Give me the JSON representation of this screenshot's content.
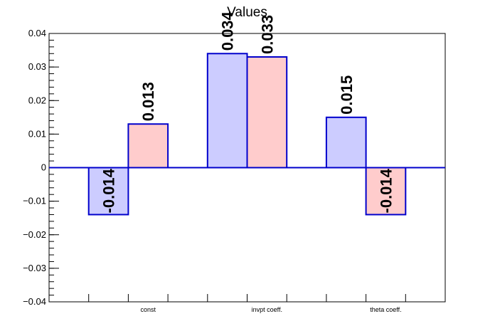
{
  "chart_data": {
    "type": "bar",
    "title": "Values",
    "categories": [
      "const",
      "invpt coeff.",
      "theta coeff."
    ],
    "series": [
      {
        "values": [
          -0.014,
          0.034,
          0.015
        ],
        "labels": [
          "-0.014",
          "0.034",
          "0.015"
        ],
        "color": "#ccccff"
      },
      {
        "values": [
          0.013,
          0.033,
          -0.014
        ],
        "labels": [
          "0.013",
          "0.033",
          "-0.014"
        ],
        "color": "#ffcccc"
      }
    ],
    "bar_edge_color": "#0000cc",
    "ylim": [
      -0.04,
      0.04
    ],
    "yticks": [
      -0.04,
      -0.03,
      -0.02,
      -0.01,
      0,
      0.01,
      0.02,
      0.03,
      0.04
    ],
    "ytick_labels": [
      "−0.04",
      "−0.03",
      "−0.02",
      "−0.01",
      "0",
      "0.01",
      "0.02",
      "0.03",
      "0.04"
    ],
    "grid": false,
    "legend": "none"
  }
}
